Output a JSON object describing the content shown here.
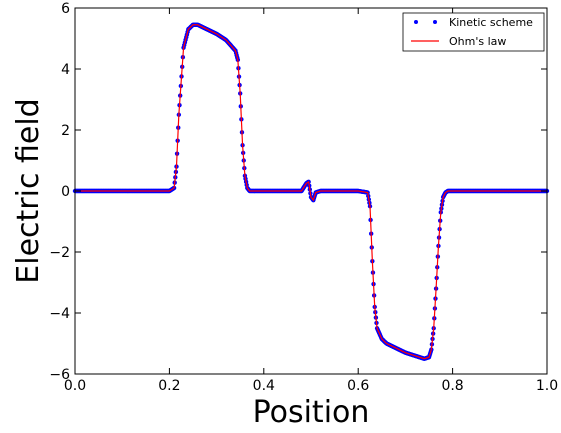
{
  "chart_data": {
    "type": "line",
    "xlabel": "Position",
    "ylabel": "Electric field",
    "xlim": [
      0.0,
      1.0
    ],
    "ylim": [
      -6,
      6
    ],
    "xticks": [
      0.0,
      0.2,
      0.4,
      0.6,
      0.8,
      1.0
    ],
    "xtick_labels": [
      "0.0",
      "0.2",
      "0.4",
      "0.6",
      "0.8",
      "1.0"
    ],
    "yticks": [
      -6,
      -4,
      -2,
      0,
      2,
      4,
      6
    ],
    "ytick_labels": [
      "−6",
      "−4",
      "−2",
      "0",
      "2",
      "4",
      "6"
    ],
    "grid": false,
    "legend_position": "top-right",
    "series": [
      {
        "name": "Kinetic scheme",
        "style": "dots",
        "color": "#0000ff",
        "x": [
          0.0,
          0.1,
          0.2,
          0.21,
          0.215,
          0.22,
          0.23,
          0.24,
          0.25,
          0.26,
          0.28,
          0.3,
          0.32,
          0.34,
          0.345,
          0.35,
          0.355,
          0.36,
          0.365,
          0.37,
          0.38,
          0.4,
          0.48,
          0.49,
          0.495,
          0.5,
          0.505,
          0.51,
          0.52,
          0.6,
          0.62,
          0.625,
          0.63,
          0.635,
          0.64,
          0.65,
          0.66,
          0.68,
          0.7,
          0.72,
          0.74,
          0.75,
          0.755,
          0.76,
          0.765,
          0.77,
          0.775,
          0.78,
          0.785,
          0.79,
          0.8,
          0.9,
          1.0
        ],
        "y": [
          0,
          0,
          0,
          0.1,
          0.8,
          2.5,
          4.7,
          5.3,
          5.45,
          5.45,
          5.3,
          5.15,
          4.95,
          4.6,
          4.3,
          3.2,
          1.5,
          0.5,
          0.1,
          0,
          0,
          0,
          0,
          0.25,
          0.3,
          -0.2,
          -0.3,
          -0.05,
          0,
          0,
          -0.05,
          -0.5,
          -2.3,
          -3.8,
          -4.5,
          -4.85,
          -5.0,
          -5.15,
          -5.3,
          -5.4,
          -5.5,
          -5.45,
          -5.2,
          -4.5,
          -3.2,
          -1.8,
          -0.7,
          -0.2,
          -0.05,
          0,
          0,
          0,
          0
        ]
      },
      {
        "name": "Ohm's law",
        "style": "line",
        "color": "#ff0000",
        "x": [
          0.0,
          0.1,
          0.2,
          0.21,
          0.215,
          0.22,
          0.23,
          0.24,
          0.25,
          0.26,
          0.28,
          0.3,
          0.32,
          0.34,
          0.345,
          0.35,
          0.355,
          0.36,
          0.365,
          0.37,
          0.38,
          0.4,
          0.48,
          0.49,
          0.495,
          0.5,
          0.505,
          0.51,
          0.52,
          0.6,
          0.62,
          0.625,
          0.63,
          0.635,
          0.64,
          0.65,
          0.66,
          0.68,
          0.7,
          0.72,
          0.74,
          0.75,
          0.755,
          0.76,
          0.765,
          0.77,
          0.775,
          0.78,
          0.785,
          0.79,
          0.8,
          0.9,
          1.0
        ],
        "y": [
          0,
          0,
          0,
          0.1,
          0.8,
          2.5,
          4.7,
          5.3,
          5.45,
          5.45,
          5.3,
          5.15,
          4.95,
          4.6,
          4.3,
          3.2,
          1.5,
          0.5,
          0.1,
          0,
          0,
          0,
          0,
          0.25,
          0.3,
          -0.2,
          -0.3,
          -0.05,
          0,
          0,
          -0.05,
          -0.5,
          -2.3,
          -3.8,
          -4.5,
          -4.85,
          -5.0,
          -5.15,
          -5.3,
          -5.4,
          -5.5,
          -5.45,
          -5.2,
          -4.5,
          -3.2,
          -1.8,
          -0.7,
          -0.2,
          -0.05,
          0,
          0,
          0,
          0
        ]
      }
    ]
  }
}
